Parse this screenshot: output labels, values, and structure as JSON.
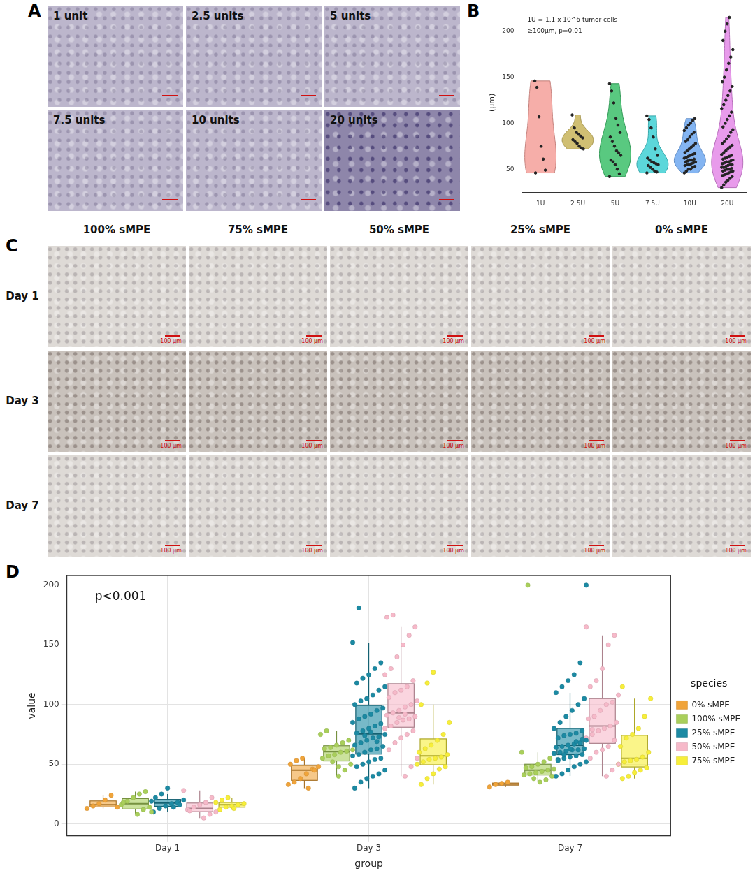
{
  "panel_A": {
    "letter": "A",
    "images": [
      "1 unit",
      "2.5 units",
      "5 units",
      "7.5 units",
      "10 units",
      "20 units"
    ]
  },
  "panel_C": {
    "letter": "C",
    "columns": [
      "100% sMPE",
      "75% sMPE",
      "50% sMPE",
      "25% sMPE",
      "0% sMPE"
    ],
    "rows": [
      "Day 1",
      "Day 3",
      "Day 7"
    ],
    "scale_bar": "100 µm"
  },
  "chart_data": [
    {
      "panel_label": "B",
      "type": "violin",
      "annotations": [
        "1U = 1.1 x 10^6 tumor cells",
        "≥100µm, p=0.01"
      ],
      "y_label": "(µm)",
      "categories": [
        "1U",
        "2.5U",
        "5U",
        "7.5U",
        "10U",
        "20U"
      ],
      "colors": [
        "#f4a09a",
        "#c8b45a",
        "#3cbf6a",
        "#40d0d4",
        "#6fa8f0",
        "#e48ae8"
      ],
      "values": [
        [
          146,
          139,
          107,
          75,
          61,
          49,
          46
        ],
        [
          109,
          95,
          90,
          88,
          86,
          84,
          82,
          80,
          78,
          75,
          73,
          72
        ],
        [
          143,
          135,
          122,
          105,
          98,
          90,
          85,
          80,
          75,
          70,
          68,
          65,
          60,
          58,
          55,
          50,
          45,
          42
        ],
        [
          108,
          104,
          95,
          85,
          72,
          65,
          62,
          60,
          58,
          57,
          56,
          55,
          54,
          52,
          50,
          48,
          47,
          46
        ],
        [
          46,
          48,
          50,
          50,
          52,
          53,
          54,
          55,
          55,
          56,
          57,
          58,
          58,
          59,
          60,
          60,
          61,
          62,
          63,
          64,
          65,
          66,
          67,
          68,
          70,
          72,
          74,
          76,
          78,
          80,
          82,
          85,
          88,
          90,
          92,
          95,
          98,
          100,
          103,
          105
        ],
        [
          30,
          33,
          36,
          38,
          40,
          42,
          43,
          44,
          45,
          46,
          47,
          48,
          48,
          49,
          50,
          50,
          51,
          52,
          52,
          53,
          54,
          55,
          55,
          56,
          57,
          58,
          58,
          59,
          60,
          61,
          62,
          63,
          64,
          65,
          66,
          68,
          70,
          72,
          74,
          76,
          78,
          80,
          83,
          86,
          90,
          93,
          96,
          100,
          104,
          108,
          112,
          116,
          120,
          125,
          130,
          135,
          140,
          145,
          150,
          158,
          165,
          172,
          180,
          190,
          200,
          208,
          215
        ]
      ],
      "marker": "circle",
      "ylim": [
        25,
        220
      ],
      "yticks": [
        50,
        100,
        150,
        200
      ],
      "grid": false
    },
    {
      "panel_label": "D",
      "type": "box",
      "annotations": [
        "p<0.001"
      ],
      "x_label": "group",
      "y_label": "value",
      "legend_title": "species",
      "legend": "right",
      "categories": [
        "Day 1",
        "Day 3",
        "Day 7"
      ],
      "series": [
        {
          "name": "0% sMPE",
          "color": "#f0a43a",
          "values": [
            [
              13,
              15,
              17,
              20,
              24,
              14
            ],
            [
              33,
              35,
              38,
              42,
              46,
              48,
              50,
              53,
              55,
              30,
              45
            ],
            [
              31,
              33,
              34,
              35
            ]
          ]
        },
        {
          "name": "100% sMPE",
          "color": "#a9cf5b",
          "values": [
            [
              8,
              12,
              14,
              16,
              19,
              22,
              25,
              27,
              10,
              18
            ],
            [
              40,
              45,
              50,
              55,
              57,
              58,
              60,
              61,
              62,
              63,
              64,
              66,
              68,
              70,
              75,
              78,
              52,
              48
            ],
            [
              35,
              37,
              40,
              41,
              42,
              43,
              44,
              45,
              46,
              47,
              48,
              50,
              52,
              55,
              60,
              200,
              38
            ]
          ]
        },
        {
          "name": "25% sMPE",
          "color": "#1c8aa3",
          "values": [
            [
              10,
              13,
              15,
              17,
              18,
              20,
              22,
              25,
              30,
              14,
              16,
              19
            ],
            [
              30,
              35,
              38,
              40,
              42,
              45,
              48,
              50,
              52,
              54,
              55,
              57,
              58,
              60,
              62,
              63,
              65,
              66,
              68,
              70,
              72,
              73,
              75,
              76,
              78,
              80,
              82,
              84,
              85,
              88,
              90,
              92,
              95,
              97,
              100,
              103,
              105,
              108,
              112,
              115,
              118,
              122,
              125,
              130,
              135,
              152,
              181,
              74,
              77,
              69
            ],
            [
              40,
              42,
              45,
              48,
              50,
              52,
              54,
              55,
              56,
              57,
              58,
              59,
              60,
              61,
              62,
              62,
              63,
              64,
              65,
              66,
              67,
              68,
              70,
              72,
              74,
              75,
              76,
              78,
              80,
              85,
              90,
              95,
              100,
              105,
              110,
              115,
              120,
              125,
              135,
              200,
              53,
              58,
              63,
              69,
              71
            ]
          ]
        },
        {
          "name": "50% sMPE",
          "color": "#f6b9c9",
          "values": [
            [
              5,
              8,
              10,
              12,
              14,
              16,
              18,
              22,
              28,
              11
            ],
            [
              40,
              48,
              55,
              62,
              68,
              72,
              75,
              78,
              80,
              82,
              85,
              87,
              88,
              90,
              91,
              93,
              95,
              98,
              100,
              103,
              106,
              110,
              112,
              115,
              120,
              125,
              130,
              140,
              150,
              158,
              165,
              173,
              175,
              89,
              92
            ],
            [
              40,
              45,
              50,
              55,
              60,
              62,
              65,
              70,
              72,
              75,
              78,
              80,
              82,
              85,
              88,
              90,
              95,
              100,
              102,
              108,
              115,
              120,
              130,
              150,
              158,
              165,
              79
            ]
          ]
        },
        {
          "name": "75% sMPE",
          "color": "#f7ee3a",
          "values": [
            [
              12,
              14,
              15,
              16,
              17,
              18,
              20,
              22,
              13
            ],
            [
              33,
              38,
              42,
              46,
              48,
              50,
              52,
              54,
              55,
              56,
              58,
              60,
              63,
              66,
              70,
              75,
              85,
              100,
              118,
              127
            ],
            [
              38,
              40,
              43,
              45,
              47,
              50,
              52,
              53,
              54,
              56,
              60,
              65,
              72,
              75,
              80,
              90,
              105,
              115
            ]
          ]
        }
      ],
      "marker": "circle",
      "ylim": [
        -10,
        208
      ],
      "yticks": [
        0,
        50,
        100,
        150,
        200
      ],
      "grid": true
    }
  ]
}
